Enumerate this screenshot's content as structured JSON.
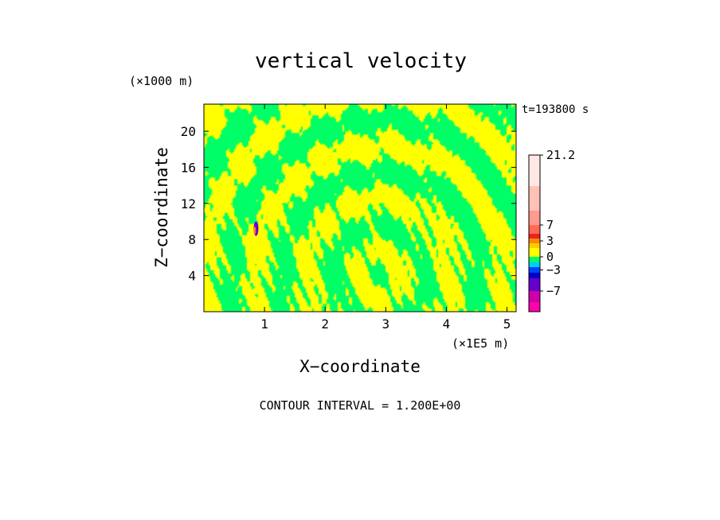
{
  "chart_data": {
    "type": "heatmap",
    "title": "vertical velocity",
    "xlabel": "X−coordinate",
    "ylabel": "Z−coordinate",
    "x_unit": "(×1E5 m)",
    "y_unit": "(×1000 m)",
    "time_label": "t=193800 s",
    "footer": "CONTOUR INTERVAL = 1.200E+00",
    "xlim": [
      0,
      5.15
    ],
    "ylim": [
      0,
      23
    ],
    "x_ticks": [
      1,
      2,
      3,
      4,
      5
    ],
    "y_ticks": [
      4,
      8,
      12,
      16,
      20
    ],
    "x_tick_labels": [
      "1",
      "2",
      "3",
      "4",
      "5"
    ],
    "y_tick_labels": [
      "4",
      "8",
      "12",
      "16",
      "20"
    ],
    "field_colors": {
      "positive": "#ffff00",
      "negative": "#00ff66"
    },
    "colorbar": {
      "labels": [
        "21.2",
        "7",
        "3",
        "0",
        "−3",
        "−7"
      ],
      "label_values": [
        21.2,
        7,
        3,
        0,
        -3,
        -7
      ],
      "bands": [
        {
          "from": 14.0,
          "to": 21.2,
          "color": "#ffe8e4"
        },
        {
          "from": 9.5,
          "to": 14.0,
          "color": "#ffc0b8"
        },
        {
          "from": 7.0,
          "to": 9.5,
          "color": "#ff9a8c"
        },
        {
          "from": 5.0,
          "to": 7.0,
          "color": "#ff6a55"
        },
        {
          "from": 3.6,
          "to": 5.0,
          "color": "#ee2222"
        },
        {
          "from": 2.4,
          "to": 3.6,
          "color": "#ff8800"
        },
        {
          "from": 1.2,
          "to": 2.4,
          "color": "#ffcc00"
        },
        {
          "from": 0.0,
          "to": 1.2,
          "color": "#ffff00"
        },
        {
          "from": -1.2,
          "to": 0.0,
          "color": "#00ff66"
        },
        {
          "from": -2.4,
          "to": -1.2,
          "color": "#00ccff"
        },
        {
          "from": -3.6,
          "to": -2.4,
          "color": "#0044ff"
        },
        {
          "from": -5.0,
          "to": -3.6,
          "color": "#0000cc"
        },
        {
          "from": -7.0,
          "to": -5.0,
          "color": "#6600cc"
        },
        {
          "from": -8.5,
          "to": -7.0,
          "color": "#cc00aa"
        },
        {
          "from": -10.0,
          "to": -8.5,
          "color": "#ff00aa"
        }
      ]
    }
  }
}
